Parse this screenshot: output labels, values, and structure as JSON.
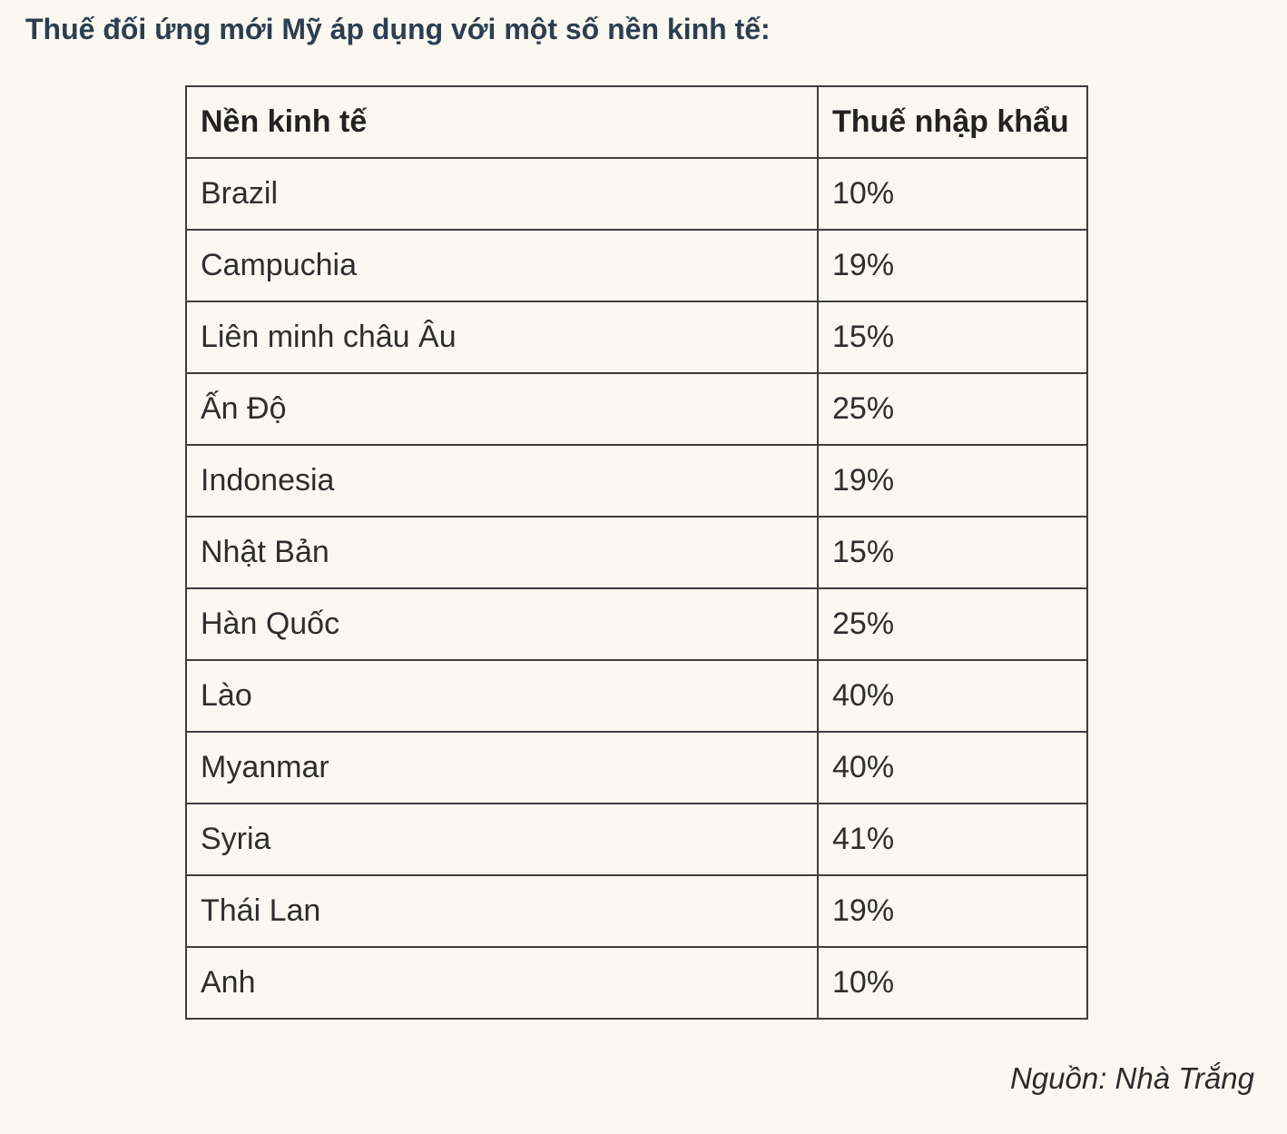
{
  "page": {
    "background_color": "#faf8f1",
    "title_color": "#2c3e50",
    "text_color": "#2e2e2e",
    "border_color": "#3d3d3d"
  },
  "chart_data": {
    "type": "table",
    "title": "Thuế đối ứng mới Mỹ áp dụng với một số nền kinh tế:",
    "columns": [
      "Nền kinh tế",
      "Thuế nhập khẩu"
    ],
    "rows": [
      [
        "Brazil",
        "10%"
      ],
      [
        "Campuchia",
        "19%"
      ],
      [
        "Liên minh châu Âu",
        "15%"
      ],
      [
        "Ấn Độ",
        "25%"
      ],
      [
        "Indonesia",
        "19%"
      ],
      [
        "Nhật Bản",
        "15%"
      ],
      [
        "Hàn Quốc",
        "25%"
      ],
      [
        "Lào",
        "40%"
      ],
      [
        "Myanmar",
        "40%"
      ],
      [
        "Syria",
        "41%"
      ],
      [
        "Thái Lan",
        "19%"
      ],
      [
        "Anh",
        "10%"
      ]
    ],
    "source": "Nguồn: Nhà Trắng"
  }
}
